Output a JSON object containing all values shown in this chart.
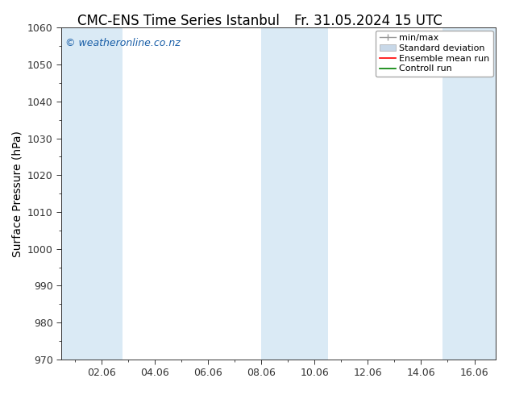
{
  "title_left": "CMC-ENS Time Series Istanbul",
  "title_right": "Fr. 31.05.2024 15 UTC",
  "ylabel": "Surface Pressure (hPa)",
  "ylim": [
    970,
    1060
  ],
  "yticks": [
    970,
    980,
    990,
    1000,
    1010,
    1020,
    1030,
    1040,
    1050,
    1060
  ],
  "xtick_labels": [
    "02.06",
    "04.06",
    "06.06",
    "08.06",
    "10.06",
    "12.06",
    "14.06",
    "16.06"
  ],
  "xtick_positions": [
    2,
    4,
    6,
    8,
    10,
    12,
    14,
    16
  ],
  "xlim": [
    0.5,
    16.8
  ],
  "shaded_bands": [
    {
      "x_start": 0.5,
      "x_end": 2.8
    },
    {
      "x_start": 8.0,
      "x_end": 10.5
    },
    {
      "x_start": 14.8,
      "x_end": 16.8
    }
  ],
  "shade_color": "#daeaf5",
  "watermark": "© weatheronline.co.nz",
  "watermark_color": "#1a5fa8",
  "background_color": "#ffffff",
  "legend_entries": [
    {
      "label": "min/max",
      "color": "#aaaaaa",
      "style": "minmax"
    },
    {
      "label": "Standard deviation",
      "color": "#c8d8e8",
      "style": "fill"
    },
    {
      "label": "Ensemble mean run",
      "color": "#ff0000",
      "style": "line"
    },
    {
      "label": "Controll run",
      "color": "#008000",
      "style": "line"
    }
  ],
  "title_fontsize": 12,
  "axis_label_fontsize": 10,
  "tick_fontsize": 9,
  "legend_fontsize": 8,
  "watermark_fontsize": 9
}
